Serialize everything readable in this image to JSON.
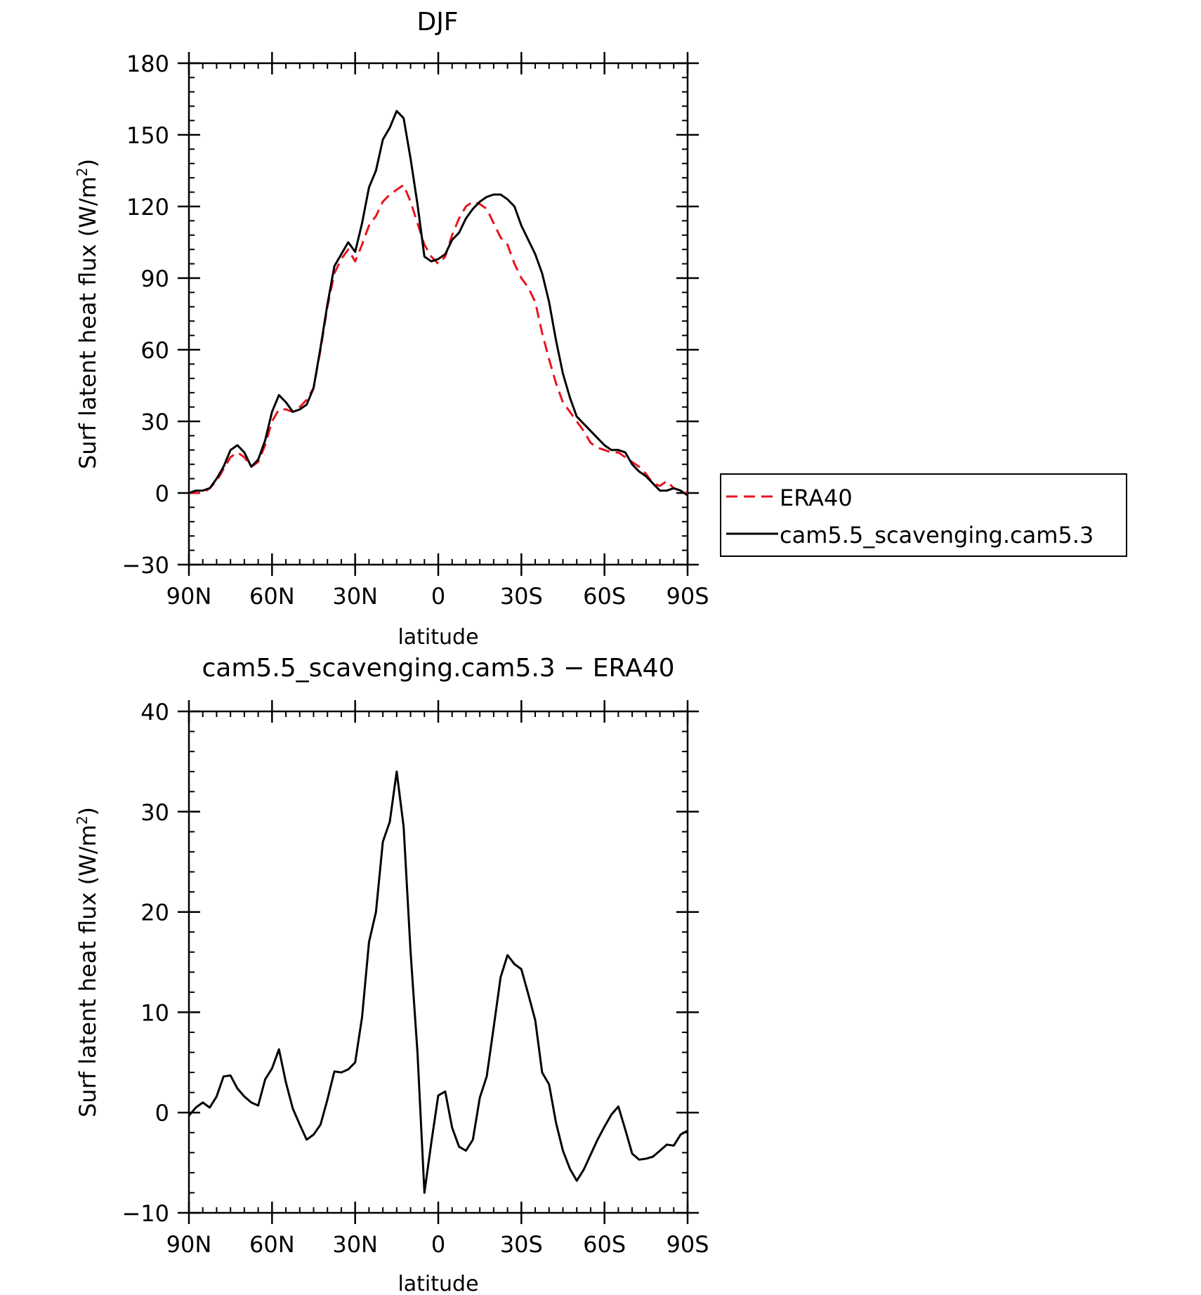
{
  "chart_data": [
    {
      "type": "line",
      "title": "DJF",
      "xlabel": "latitude",
      "ylabel": "Surf latent heat flux (W/m",
      "ylabel_sup": "2",
      "ylabel_close": ")",
      "xlim": [
        90,
        -90
      ],
      "ylim": [
        -30,
        180
      ],
      "xticks": [
        90,
        60,
        30,
        0,
        -30,
        -60,
        -90
      ],
      "xtick_labels": [
        "90N",
        "60N",
        "30N",
        "0",
        "30S",
        "60S",
        "90S"
      ],
      "yticks": [
        -30,
        0,
        30,
        60,
        90,
        120,
        150,
        180
      ],
      "ytick_labels": [
        "−30",
        "0",
        "30",
        "60",
        "90",
        "120",
        "150",
        "180"
      ],
      "legend": "right",
      "series": [
        {
          "name": "ERA40",
          "color": "#e8141e",
          "dash": true,
          "x": [
            90,
            87.5,
            85,
            82.5,
            80,
            77.5,
            75,
            72.5,
            70,
            67.5,
            65,
            62.5,
            60,
            57.5,
            55,
            52.5,
            50,
            47.5,
            45,
            42.5,
            40,
            37.5,
            35,
            32.5,
            30,
            27.5,
            25,
            22.5,
            20,
            17.5,
            15,
            12.5,
            10,
            7.5,
            5,
            2.5,
            0,
            -2.5,
            -5,
            -7.5,
            -10,
            -12.5,
            -15,
            -17.5,
            -20,
            -22.5,
            -25,
            -27.5,
            -30,
            -32.5,
            -35,
            -37.5,
            -40,
            -42.5,
            -45,
            -47.5,
            -50,
            -52.5,
            -55,
            -57.5,
            -60,
            -62.5,
            -65,
            -67.5,
            -70,
            -72.5,
            -75,
            -77.5,
            -80,
            -82.5,
            -85,
            -87.5,
            -90
          ],
          "y": [
            0,
            0,
            0,
            2,
            5,
            10,
            15,
            17,
            15,
            11,
            13,
            20,
            30,
            35,
            35,
            34,
            36,
            39,
            44,
            60,
            78,
            92,
            98,
            102,
            97,
            104,
            112,
            116,
            122,
            125,
            127,
            129,
            122,
            113,
            104,
            99,
            96,
            99,
            108,
            115,
            120,
            122,
            121,
            119,
            113,
            107,
            104,
            96,
            90,
            86,
            80,
            67,
            56,
            46,
            38,
            34,
            30,
            26,
            21,
            19,
            18,
            17,
            17,
            15,
            13,
            11,
            8,
            4,
            3,
            5,
            2,
            1,
            0
          ]
        },
        {
          "name": "cam5.5_scavenging.cam5.3",
          "color": "#000000",
          "dash": false,
          "x": [
            90,
            87.5,
            85,
            82.5,
            80,
            77.5,
            75,
            72.5,
            70,
            67.5,
            65,
            62.5,
            60,
            57.5,
            55,
            52.5,
            50,
            47.5,
            45,
            42.5,
            40,
            37.5,
            35,
            32.5,
            30,
            27.5,
            25,
            22.5,
            20,
            17.5,
            15,
            12.5,
            10,
            7.5,
            5,
            2.5,
            0,
            -2.5,
            -5,
            -7.5,
            -10,
            -12.5,
            -15,
            -17.5,
            -20,
            -22.5,
            -25,
            -27.5,
            -30,
            -32.5,
            -35,
            -37.5,
            -40,
            -42.5,
            -45,
            -47.5,
            -50,
            -52.5,
            -55,
            -57.5,
            -60,
            -62.5,
            -65,
            -67.5,
            -70,
            -72.5,
            -75,
            -77.5,
            -80,
            -82.5,
            -85,
            -87.5,
            -90
          ],
          "y": [
            0,
            1,
            1,
            2,
            6,
            11,
            18,
            20,
            17,
            11,
            14,
            22,
            34,
            41,
            38,
            34,
            35,
            37,
            44,
            61,
            79,
            95,
            100,
            105,
            101,
            113,
            128,
            135,
            148,
            153,
            160,
            157,
            140,
            121,
            99,
            97,
            98,
            100,
            106,
            109,
            115,
            119,
            122,
            124,
            125,
            125,
            123,
            120,
            112,
            106,
            100,
            92,
            80,
            64,
            50,
            40,
            32,
            29,
            26,
            23,
            20,
            18,
            18,
            17,
            12,
            9,
            7,
            4,
            1,
            1,
            2,
            1,
            -1
          ]
        }
      ]
    },
    {
      "type": "line",
      "title": "cam5.5_scavenging.cam5.3 − ERA40",
      "xlabel": "latitude",
      "ylabel": "Surf latent heat flux (W/m",
      "ylabel_sup": "2",
      "ylabel_close": ")",
      "xlim": [
        90,
        -90
      ],
      "ylim": [
        -10,
        40
      ],
      "xticks": [
        90,
        60,
        30,
        0,
        -30,
        -60,
        -90
      ],
      "xtick_labels": [
        "90N",
        "60N",
        "30N",
        "0",
        "30S",
        "60S",
        "90S"
      ],
      "yticks": [
        -10,
        0,
        10,
        20,
        30,
        40
      ],
      "ytick_labels": [
        "−10",
        "0",
        "10",
        "20",
        "30",
        "40"
      ],
      "series": [
        {
          "color": "#000000",
          "dash": false,
          "x": [
            90,
            87.5,
            85,
            82.5,
            80,
            77.5,
            75,
            72.5,
            70,
            67.5,
            65,
            62.5,
            60,
            57.5,
            55,
            52.5,
            50,
            47.5,
            45,
            42.5,
            40,
            37.5,
            35,
            32.5,
            30,
            27.5,
            25,
            22.5,
            20,
            17.5,
            15,
            12.5,
            10,
            7.5,
            5,
            2.5,
            0,
            -2.5,
            -5,
            -7.5,
            -10,
            -12.5,
            -15,
            -17.5,
            -20,
            -22.5,
            -25,
            -27.5,
            -30,
            -32.5,
            -35,
            -37.5,
            -40,
            -42.5,
            -45,
            -47.5,
            -50,
            -52.5,
            -55,
            -57.5,
            -60,
            -62.5,
            -65,
            -67.5,
            -70,
            -72.5,
            -75,
            -77.5,
            -80,
            -82.5,
            -85,
            -87.5,
            -90
          ],
          "y": [
            -0.3,
            0.5,
            1.0,
            0.5,
            1.6,
            3.6,
            3.7,
            2.4,
            1.6,
            1.0,
            0.7,
            3.3,
            4.4,
            6.3,
            3.0,
            0.4,
            -1.2,
            -2.7,
            -2.2,
            -1.2,
            1.3,
            4.1,
            4.0,
            4.3,
            5.0,
            9.5,
            17.0,
            20.0,
            27.0,
            29.0,
            34.0,
            28.5,
            16.0,
            6.0,
            -8.0,
            -3.0,
            1.7,
            2.1,
            -1.5,
            -3.4,
            -3.8,
            -2.7,
            1.5,
            3.6,
            8.5,
            13.5,
            15.7,
            14.8,
            14.3,
            11.8,
            9.2,
            4.0,
            2.8,
            -1.0,
            -3.8,
            -5.6,
            -6.8,
            -5.7,
            -4.2,
            -2.7,
            -1.4,
            -0.2,
            0.6,
            -1.7,
            -4.1,
            -4.7,
            -4.6,
            -4.4,
            -3.8,
            -3.2,
            -3.3,
            -2.2,
            -1.8
          ]
        }
      ]
    }
  ]
}
